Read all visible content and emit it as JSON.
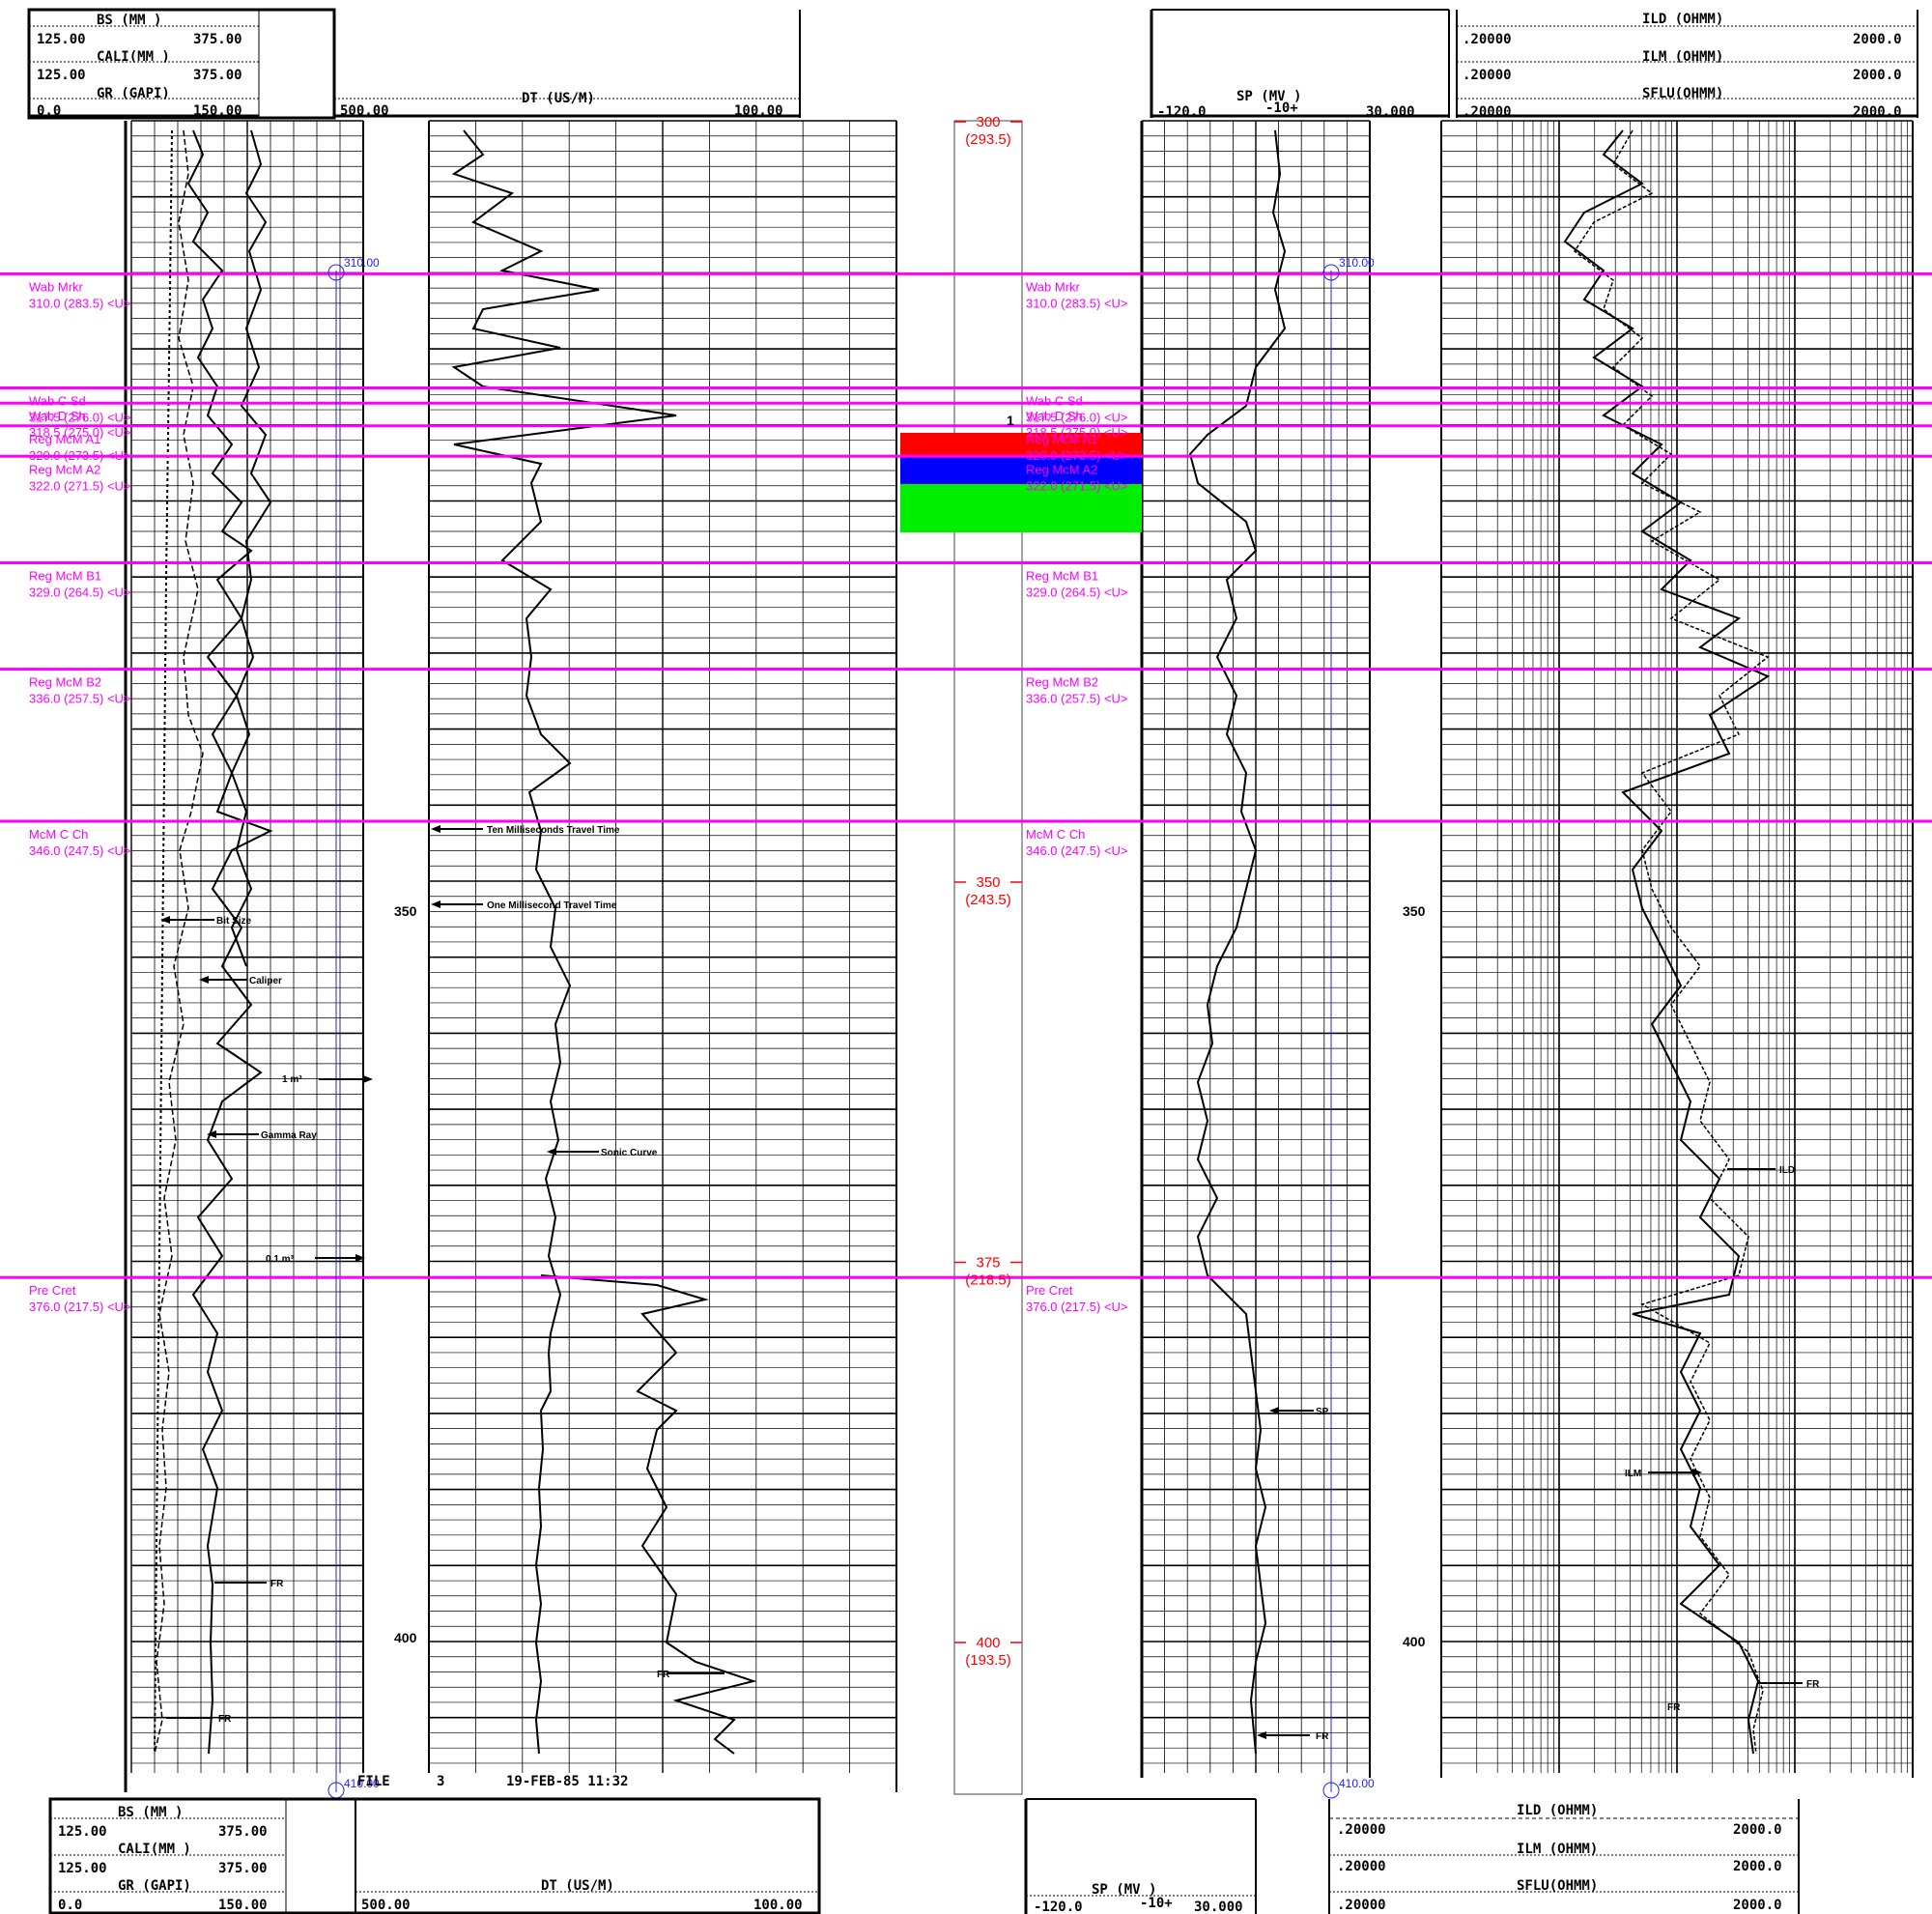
{
  "header": {
    "left": {
      "bs_label": "BS  (MM  )",
      "bs_min": "125.00",
      "bs_max": "375.00",
      "cali_label": "CALI(MM  )",
      "cali_min": "125.00",
      "cali_max": "375.00",
      "gr_label": "GR  (GAPI)",
      "gr_min": "0.0",
      "gr_max": "150.00"
    },
    "dt": {
      "label": "DT   (US/M)",
      "min": "500.00",
      "max": "100.00"
    },
    "sp": {
      "label": "SP   (MV  )",
      "min": "-120.0",
      "mid": "-10+",
      "max": "30.000"
    },
    "res": {
      "ild_label": "ILD (OHMM)",
      "ild_min": ".20000",
      "ild_max": "2000.0",
      "ilm_label": "ILM (OHMM)",
      "ilm_min": ".20000",
      "ilm_max": "2000.0",
      "sflu_label": "SFLU(OHMM)",
      "sflu_min": ".20000",
      "sflu_max": "2000.0"
    }
  },
  "footer": {
    "file_text": "FILE",
    "file_no": "3",
    "date": "19-FEB-85 11:32",
    "left": {
      "bs_label": "BS  (MM  )",
      "bs_min": "125.00",
      "bs_max": "375.00",
      "cali_label": "CALI(MM  )",
      "cali_min": "125.00",
      "cali_max": "375.00",
      "gr_label": "GR  (GAPI)",
      "gr_min": "0.0",
      "gr_max": "150.00"
    },
    "dt": {
      "label": "DT   (US/M)",
      "min": "500.00",
      "max": "100.00"
    },
    "sp": {
      "label": "SP   (MV  )",
      "min": "-120.0",
      "mid": "-10+",
      "max": "30.000"
    },
    "res": {
      "ild_label": "ILD (OHMM)",
      "ild_min": ".20000",
      "ild_max": "2000.0",
      "ilm_label": "ILM (OHMM)",
      "ilm_min": ".20000",
      "ilm_max": "2000.0",
      "sflu_label": "SFLU(OHMM)",
      "sflu_min": ".20000",
      "sflu_max": "2000.0"
    }
  },
  "depth_track": [
    {
      "depth": "300",
      "sub": "(293.5)"
    },
    {
      "depth": "350",
      "sub": "(243.5)"
    },
    {
      "depth": "375",
      "sub": "(218.5)"
    },
    {
      "depth": "400",
      "sub": "(193.5)"
    }
  ],
  "depth_numbers": [
    "350",
    "400"
  ],
  "markers": [
    {
      "name": "Wab Mrkr",
      "value": "310.0 (283.5) <U>"
    },
    {
      "name": "Wab C Sd",
      "value": "317.5 (276.0) <U>"
    },
    {
      "name": "Wab D Sh",
      "value": "318.5 (275.0) <U>"
    },
    {
      "name": "Reg McM A1",
      "value": "320.0 (273.5) <U>"
    },
    {
      "name": "Reg McM A2",
      "value": "322.0 (271.5) <U>"
    },
    {
      "name": "Reg McM B1",
      "value": "329.0 (264.5) <U>"
    },
    {
      "name": "Reg McM B2",
      "value": "336.0 (257.5) <U>"
    },
    {
      "name": "McM C Ch",
      "value": "346.0 (247.5) <U>"
    },
    {
      "name": "Pre Cret",
      "value": "376.0 (217.5) <U>"
    }
  ],
  "annotations": {
    "bit_size": "Bit Size",
    "caliper": "Caliper",
    "gamma_ray": "Gamma Ray",
    "one_m3": "1 m³",
    "point_one_m3": "0.1 m³",
    "ten_ms": "Ten Milliseconds Travel Time",
    "one_ms": "One Millisecond Travel Time",
    "sonic": "Sonic Curve",
    "fr": "FR",
    "sp": "SP",
    "ild": "ILD",
    "ilm": "ILM",
    "one": "1"
  },
  "blue_markers": {
    "top": "310.00",
    "bottom": "410.00"
  },
  "colors": {
    "marker": "#ff00ff",
    "depth": "#ff0000",
    "red_band": "#ff0000",
    "blue_band": "#0000ff",
    "green_band": "#00ee00",
    "blue_line": "#2222ff"
  }
}
